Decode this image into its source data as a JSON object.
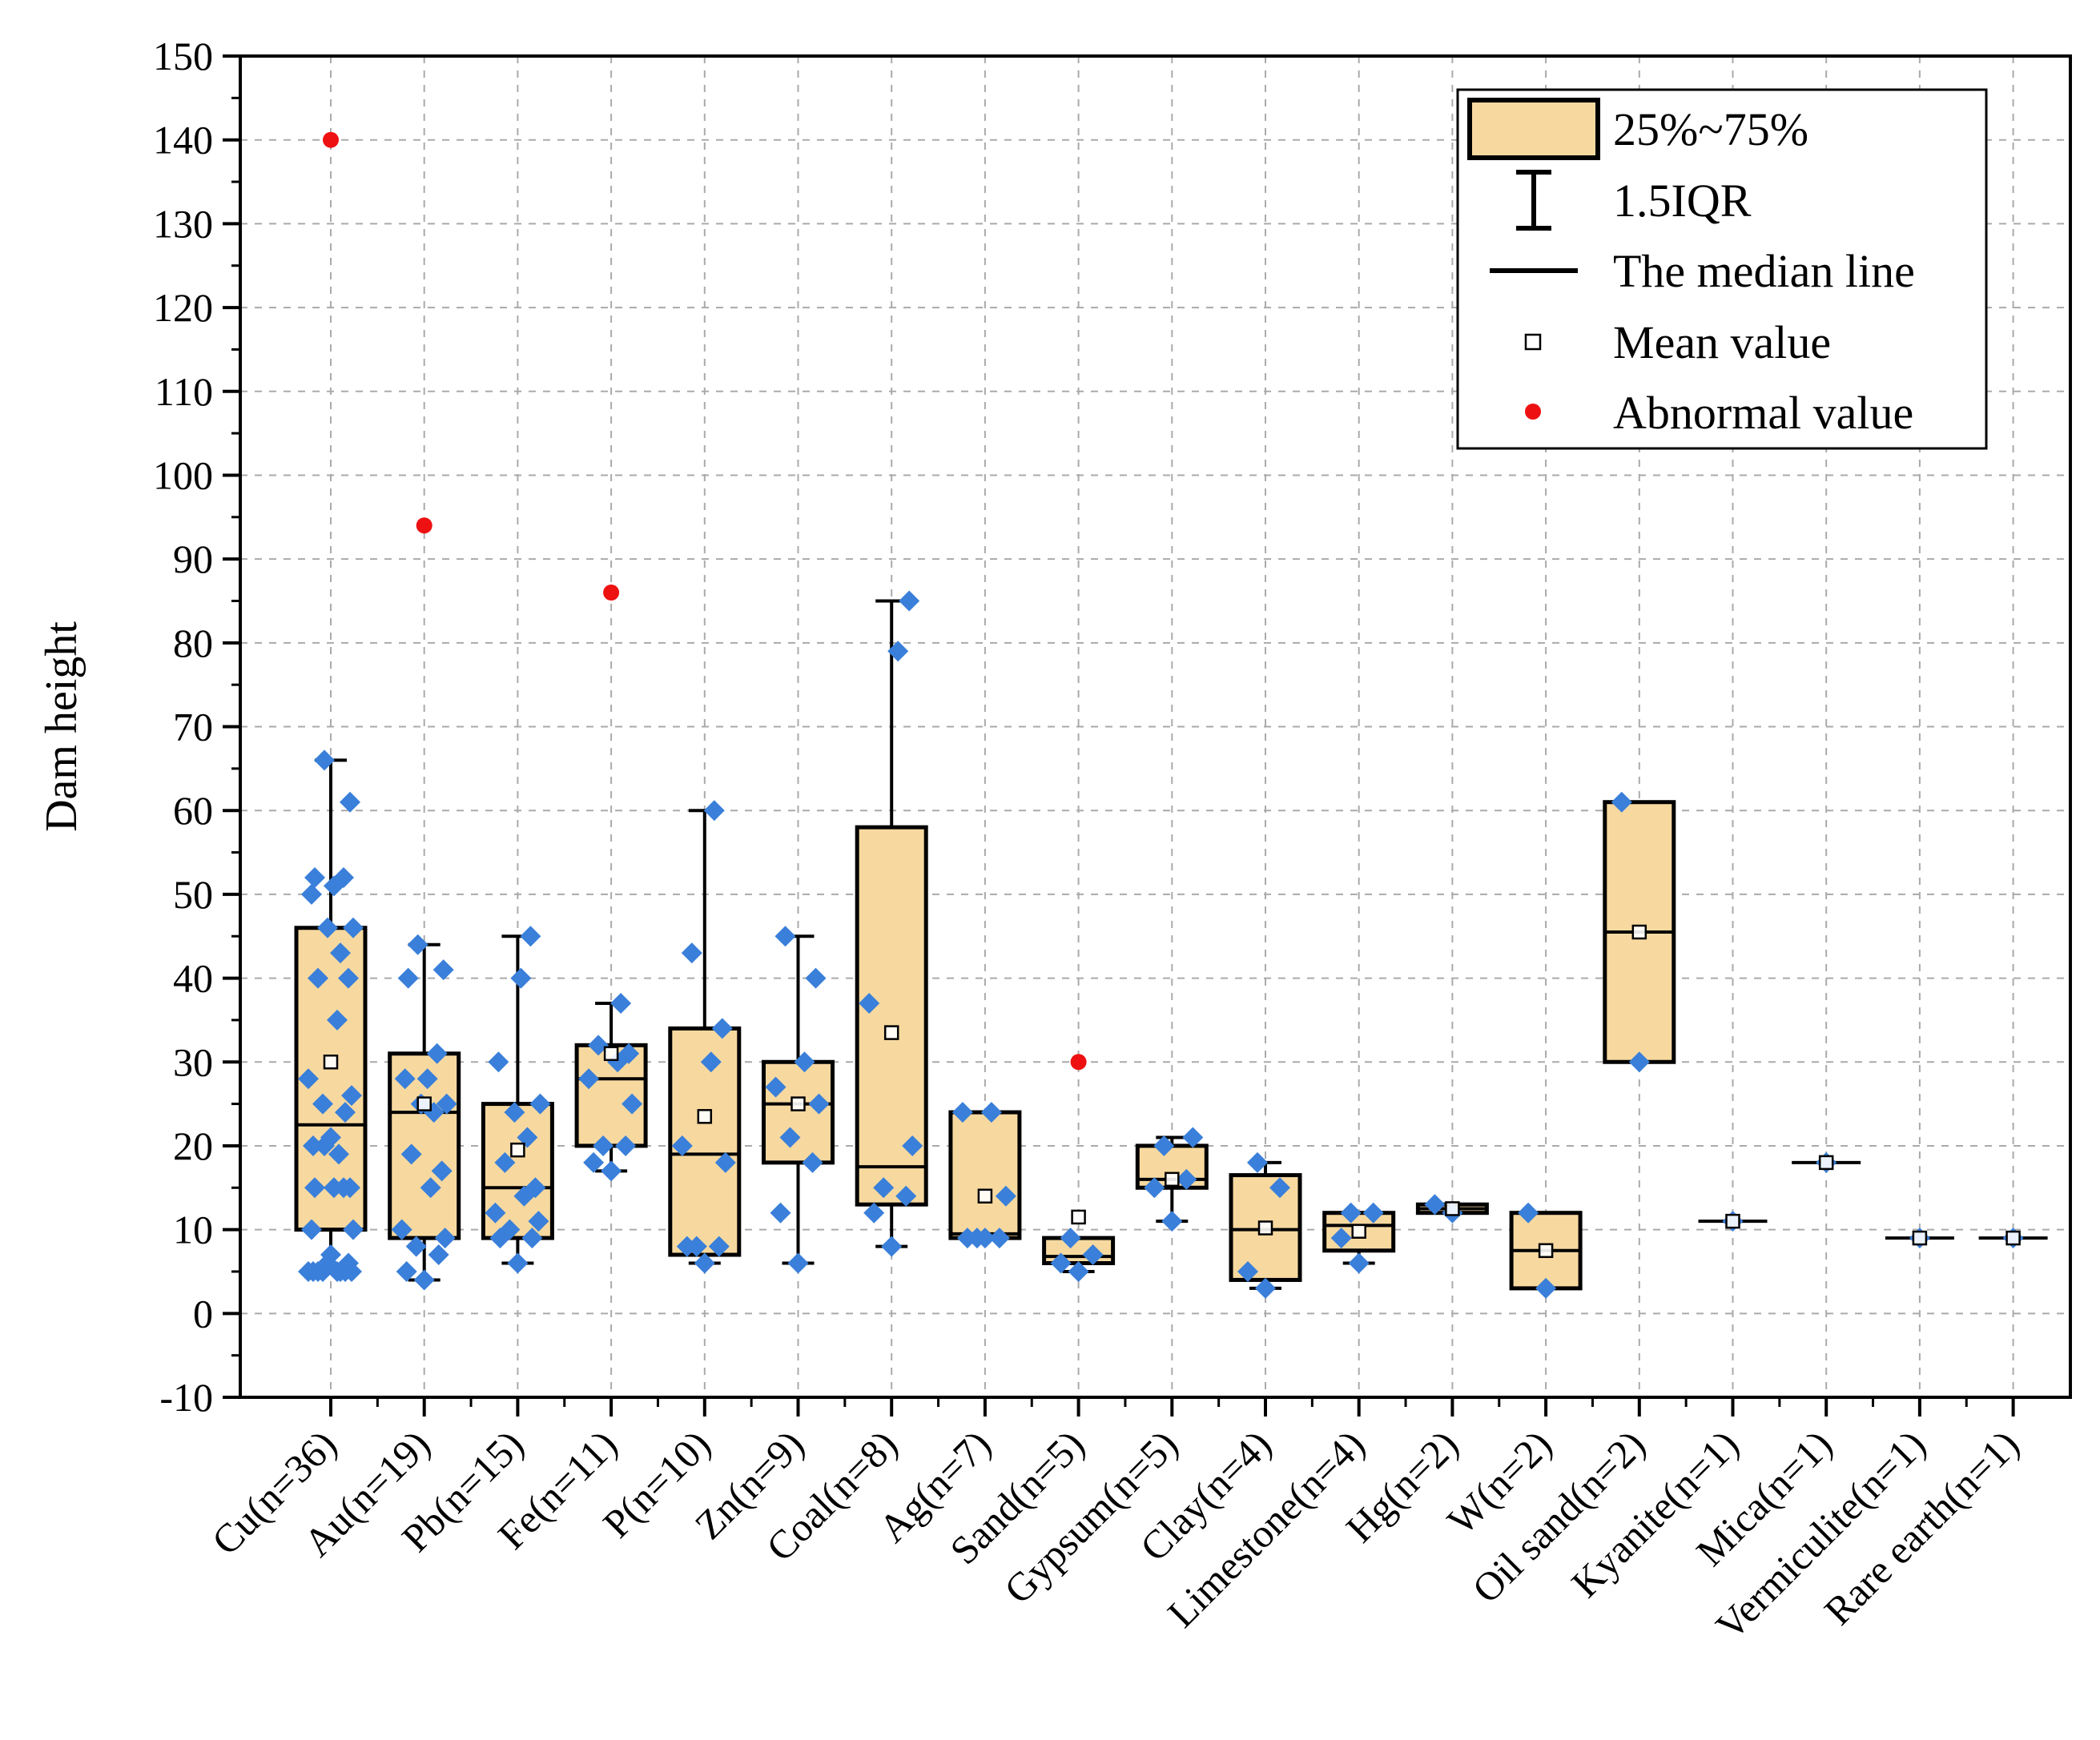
{
  "chart_data": {
    "type": "box",
    "title": "",
    "xlabel": "",
    "ylabel": "Dam height",
    "ylim": [
      -10,
      150
    ],
    "yticks": [
      -10,
      0,
      10,
      20,
      30,
      40,
      50,
      60,
      70,
      80,
      90,
      100,
      110,
      120,
      130,
      140,
      150
    ],
    "grid": true,
    "legend_position": "top-right",
    "colors": {
      "box_fill": "#f7d9a0",
      "point": "#3a7fd9",
      "outlier": "#ee1111",
      "grid": "#aaaaaa"
    },
    "legend": {
      "box_label": "25%~75%",
      "whisker_label": "1.5IQR",
      "median_label": "The median line",
      "mean_label": "Mean value",
      "outlier_label": "Abnormal value"
    },
    "categories": [
      {
        "label": "Cu(n=36)",
        "q1": 10,
        "median": 22.5,
        "q3": 46,
        "wlow": 5,
        "whigh": 66,
        "mean": 30,
        "outliers": [
          140
        ],
        "points": [
          7,
          5,
          5,
          5,
          5,
          5,
          5,
          6,
          5,
          5,
          6,
          10,
          10,
          15,
          15,
          15,
          15,
          20,
          19,
          21,
          20,
          24,
          25,
          26,
          28,
          35,
          40,
          40,
          43,
          46,
          46,
          50,
          51,
          52,
          52,
          61,
          66
        ]
      },
      {
        "label": "Au(n=19)",
        "q1": 9,
        "median": 24,
        "q3": 31,
        "wlow": 4,
        "whigh": 44,
        "mean": 25,
        "outliers": [
          94
        ],
        "points": [
          4,
          5,
          7,
          8,
          9,
          10,
          15,
          17,
          19,
          24,
          25,
          25,
          28,
          28,
          31,
          40,
          41,
          44
        ]
      },
      {
        "label": "Pb(n=15)",
        "q1": 9,
        "median": 15,
        "q3": 25,
        "wlow": 6,
        "whigh": 45,
        "mean": 19.5,
        "points": [
          6,
          9,
          9,
          10,
          11,
          12,
          14,
          15,
          18,
          21,
          24,
          25,
          30,
          40,
          45
        ]
      },
      {
        "label": "Fe(n=11)",
        "q1": 20,
        "median": 28,
        "q3": 32,
        "wlow": 17,
        "whigh": 37,
        "mean": 31,
        "outliers": [
          86
        ],
        "points": [
          17,
          18,
          20,
          20,
          25,
          28,
          30,
          31,
          32,
          37
        ]
      },
      {
        "label": "P(n=10)",
        "q1": 7,
        "median": 19,
        "q3": 34,
        "wlow": 6,
        "whigh": 60,
        "mean": 23.5,
        "points": [
          6,
          8,
          8,
          8,
          18,
          20,
          30,
          34,
          43,
          60
        ]
      },
      {
        "label": "Zn(n=9)",
        "q1": 18,
        "median": 25,
        "q3": 30,
        "wlow": 6,
        "whigh": 45,
        "mean": 25,
        "points": [
          6,
          12,
          18,
          21,
          25,
          27,
          30,
          40,
          45
        ]
      },
      {
        "label": "Coal(n=8)",
        "q1": 13,
        "median": 17.5,
        "q3": 58,
        "wlow": 8,
        "whigh": 85,
        "mean": 33.5,
        "points": [
          8,
          12,
          14,
          15,
          20,
          37,
          79,
          85
        ]
      },
      {
        "label": "Ag(n=7)",
        "q1": 9,
        "median": 9.5,
        "q3": 24,
        "wlow": 9,
        "whigh": 24,
        "mean": 14,
        "points": [
          9,
          9,
          9,
          9,
          14,
          24,
          24
        ]
      },
      {
        "label": "Sand(n=5)",
        "q1": 6,
        "median": 6.8,
        "q3": 9,
        "wlow": 5,
        "whigh": 9,
        "mean": 11.5,
        "outliers": [
          30
        ],
        "points": [
          5,
          6,
          7,
          9
        ]
      },
      {
        "label": "Gypsum(n=5)",
        "q1": 15,
        "median": 16,
        "q3": 20,
        "wlow": 11,
        "whigh": 21,
        "mean": 16,
        "points": [
          11,
          15,
          16,
          20,
          21
        ]
      },
      {
        "label": "Clay(n=4)",
        "q1": 4,
        "median": 10,
        "q3": 16.5,
        "wlow": 3,
        "whigh": 18,
        "mean": 10.2,
        "points": [
          3,
          5,
          15,
          18
        ]
      },
      {
        "label": "Limestone(n=4)",
        "q1": 7.5,
        "median": 10.5,
        "q3": 12,
        "wlow": 6,
        "whigh": 12,
        "mean": 9.8,
        "points": [
          6,
          9,
          12,
          12
        ]
      },
      {
        "label": "Hg(n=2)",
        "q1": 12,
        "median": 12.5,
        "q3": 13,
        "wlow": 12,
        "whigh": 13,
        "mean": 12.5,
        "points": [
          12,
          13
        ]
      },
      {
        "label": "W(n=2)",
        "q1": 3,
        "median": 7.5,
        "q3": 12,
        "wlow": 3,
        "whigh": 12,
        "mean": 7.5,
        "points": [
          3,
          12
        ]
      },
      {
        "label": "Oil sand(n=2)",
        "q1": 30,
        "median": 45.5,
        "q3": 61,
        "wlow": 30,
        "whigh": 61,
        "mean": 45.5,
        "points": [
          30,
          61
        ]
      },
      {
        "label": "Kyanite(n=1)",
        "q1": 11,
        "median": 11,
        "q3": 11,
        "wlow": 11,
        "whigh": 11,
        "mean": 11,
        "points": [
          11
        ]
      },
      {
        "label": "Mica(n=1)",
        "q1": 18,
        "median": 18,
        "q3": 18,
        "wlow": 18,
        "whigh": 18,
        "mean": 18,
        "points": [
          18
        ]
      },
      {
        "label": "Vermiculite(n=1)",
        "q1": 9,
        "median": 9,
        "q3": 9,
        "wlow": 9,
        "whigh": 9,
        "mean": 9,
        "points": [
          9
        ]
      },
      {
        "label": "Rare earth(n=1)",
        "q1": 9,
        "median": 9,
        "q3": 9,
        "wlow": 9,
        "whigh": 9,
        "mean": 9,
        "points": [
          9
        ]
      }
    ]
  }
}
